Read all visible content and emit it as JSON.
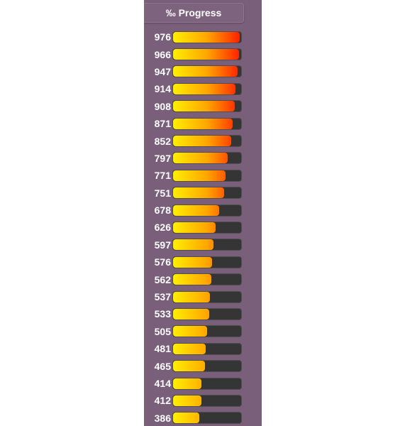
{
  "panel": {
    "header": "‰ Progress",
    "max_value": 1000,
    "colors": {
      "panel_background": "#7a5f7a",
      "track": "#353535",
      "fill_start": "#ffee00",
      "fill_end": "#ff1a00",
      "text": "#ffffff"
    },
    "rows": [
      {
        "label": "976",
        "value": 976
      },
      {
        "label": "966",
        "value": 966
      },
      {
        "label": "947",
        "value": 947
      },
      {
        "label": "914",
        "value": 914
      },
      {
        "label": "908",
        "value": 908
      },
      {
        "label": "871",
        "value": 871
      },
      {
        "label": "852",
        "value": 852
      },
      {
        "label": "797",
        "value": 797
      },
      {
        "label": "771",
        "value": 771
      },
      {
        "label": "751",
        "value": 751
      },
      {
        "label": "678",
        "value": 678
      },
      {
        "label": "626",
        "value": 626
      },
      {
        "label": "597",
        "value": 597
      },
      {
        "label": "576",
        "value": 576
      },
      {
        "label": "562",
        "value": 562
      },
      {
        "label": "537",
        "value": 537
      },
      {
        "label": "533",
        "value": 533
      },
      {
        "label": "505",
        "value": 505
      },
      {
        "label": "481",
        "value": 481
      },
      {
        "label": "465",
        "value": 465
      },
      {
        "label": "414",
        "value": 414
      },
      {
        "label": "412",
        "value": 412
      },
      {
        "label": "386",
        "value": 386
      }
    ]
  }
}
